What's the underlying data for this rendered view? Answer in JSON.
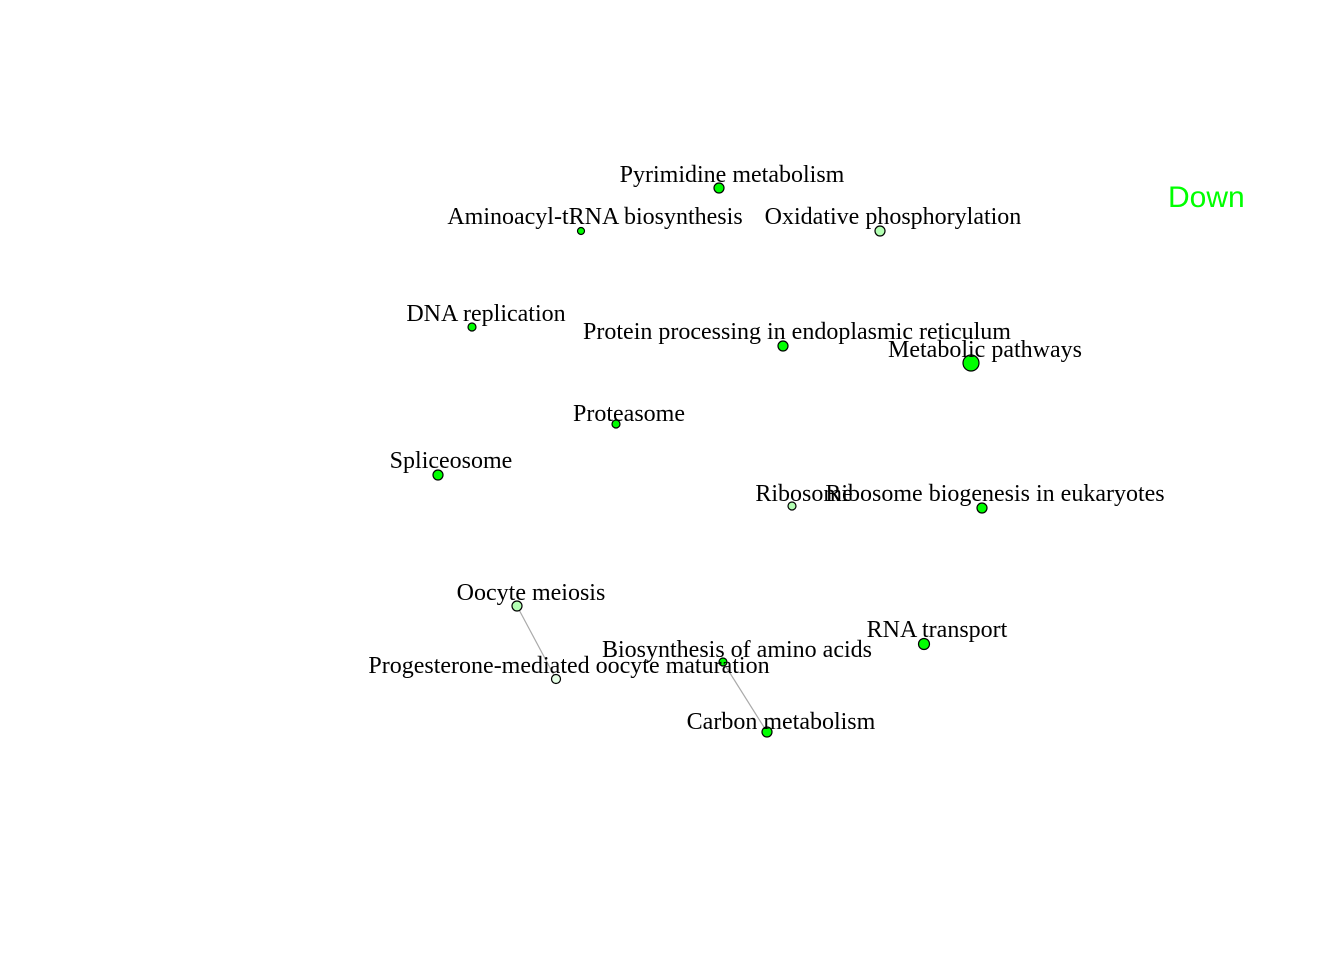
{
  "legend": {
    "label": "Down",
    "color": "#00ff00"
  },
  "colors": {
    "node_fill": "#00ff00",
    "node_fill_light": "#b3ffb3",
    "node_fill_pale": "#e6ffe6",
    "node_stroke": "#000000",
    "edge": "#aaaaaa"
  },
  "nodes": [
    {
      "id": "pyrimidine",
      "label": "Pyrimidine metabolism",
      "fill": "node_fill"
    },
    {
      "id": "aminoacyl",
      "label": "Aminoacyl-tRNA biosynthesis",
      "fill": "node_fill"
    },
    {
      "id": "oxphos",
      "label": "Oxidative phosphorylation",
      "fill": "node_fill_light"
    },
    {
      "id": "dna-replication",
      "label": "DNA replication",
      "fill": "node_fill"
    },
    {
      "id": "protein-processing",
      "label": "Protein processing in endoplasmic reticulum",
      "fill": "node_fill"
    },
    {
      "id": "metabolic",
      "label": "Metabolic pathways",
      "fill": "node_fill"
    },
    {
      "id": "proteasome",
      "label": "Proteasome",
      "fill": "node_fill"
    },
    {
      "id": "spliceosome",
      "label": "Spliceosome",
      "fill": "node_fill"
    },
    {
      "id": "ribosome",
      "label": "Ribosome",
      "fill": "node_fill_light"
    },
    {
      "id": "ribosome-biogenesis",
      "label": "Ribosome biogenesis in eukaryotes",
      "fill": "node_fill"
    },
    {
      "id": "oocyte-meiosis",
      "label": "Oocyte meiosis",
      "fill": "node_fill_light"
    },
    {
      "id": "rna-transport",
      "label": "RNA transport",
      "fill": "node_fill"
    },
    {
      "id": "biosynthesis-aa",
      "label": "Biosynthesis of amino acids",
      "fill": "node_fill"
    },
    {
      "id": "progesterone",
      "label": "Progesterone-mediated oocyte maturation",
      "fill": "node_fill_pale"
    },
    {
      "id": "carbon-metabolism",
      "label": "Carbon metabolism",
      "fill": "node_fill"
    }
  ],
  "edges": [
    {
      "from": "oocyte-meiosis",
      "to": "progesterone"
    },
    {
      "from": "biosynthesis-aa",
      "to": "carbon-metabolism"
    }
  ]
}
